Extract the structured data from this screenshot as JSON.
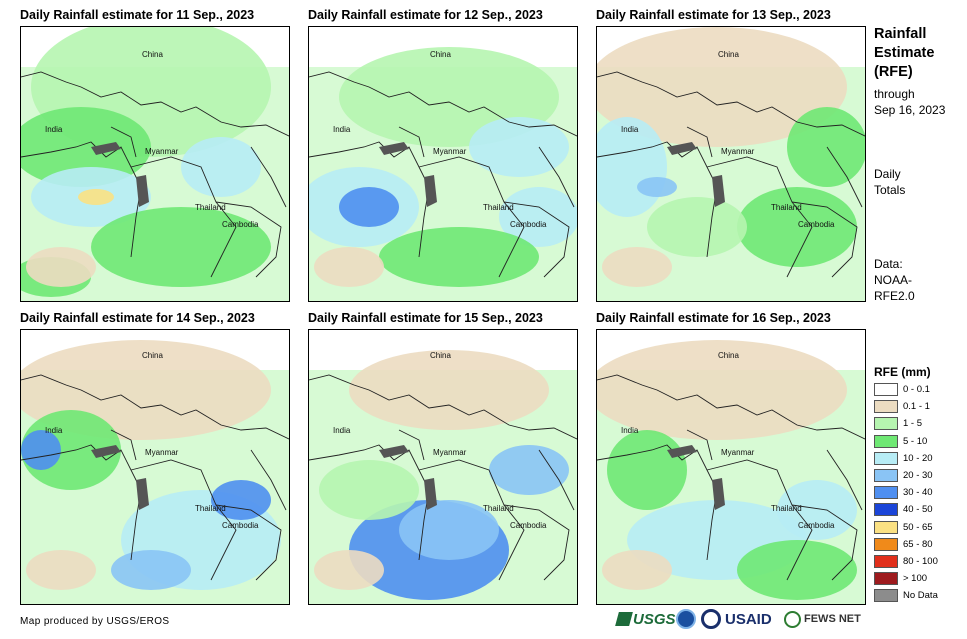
{
  "panels": [
    {
      "title": "Daily Rainfall estimate for 11 Sep., 2023"
    },
    {
      "title": "Daily Rainfall estimate for 12 Sep., 2023"
    },
    {
      "title": "Daily Rainfall estimate for 13 Sep., 2023"
    },
    {
      "title": "Daily Rainfall estimate for 14 Sep., 2023"
    },
    {
      "title": "Daily Rainfall estimate for 15 Sep., 2023"
    },
    {
      "title": "Daily Rainfall estimate for 16 Sep., 2023"
    }
  ],
  "places": {
    "china": "China",
    "india": "India",
    "myanmar": "Myanmar",
    "thailand": "Thailand",
    "cambodia": "Cambodia"
  },
  "sidebar": {
    "title_line1": "Rainfall",
    "title_line2": "Estimate",
    "title_line3": "(RFE)",
    "through": "through",
    "date": "Sep 16, 2023",
    "daily1": "Daily",
    "daily2": "Totals",
    "data_label": "Data:",
    "data_src1": "NOAA-",
    "data_src2": "RFE2.0"
  },
  "legend": {
    "title": "RFE (mm)",
    "items": [
      {
        "label": "0 - 0.1",
        "color": "#ffffff"
      },
      {
        "label": "0.1 - 1",
        "color": "#ecdcc1"
      },
      {
        "label": "1 - 5",
        "color": "#b6f5b0"
      },
      {
        "label": "5 - 10",
        "color": "#6fe874"
      },
      {
        "label": "10 - 20",
        "color": "#b7ecf5"
      },
      {
        "label": "20 - 30",
        "color": "#8ac4f5"
      },
      {
        "label": "30 - 40",
        "color": "#4f8ff0"
      },
      {
        "label": "40 - 50",
        "color": "#1b45d8"
      },
      {
        "label": "50 - 65",
        "color": "#fbe183"
      },
      {
        "label": "65 - 80",
        "color": "#f08a1a"
      },
      {
        "label": "80 - 100",
        "color": "#e12f1b"
      },
      {
        "label": "> 100",
        "color": "#9e1b1e"
      },
      {
        "label": "No Data",
        "color": "#8c8c8c"
      }
    ]
  },
  "footer": "Map produced by USGS/EROS",
  "logos": {
    "usgs": "USGS",
    "usaid": "USAID",
    "fews": "FEWS NET"
  }
}
